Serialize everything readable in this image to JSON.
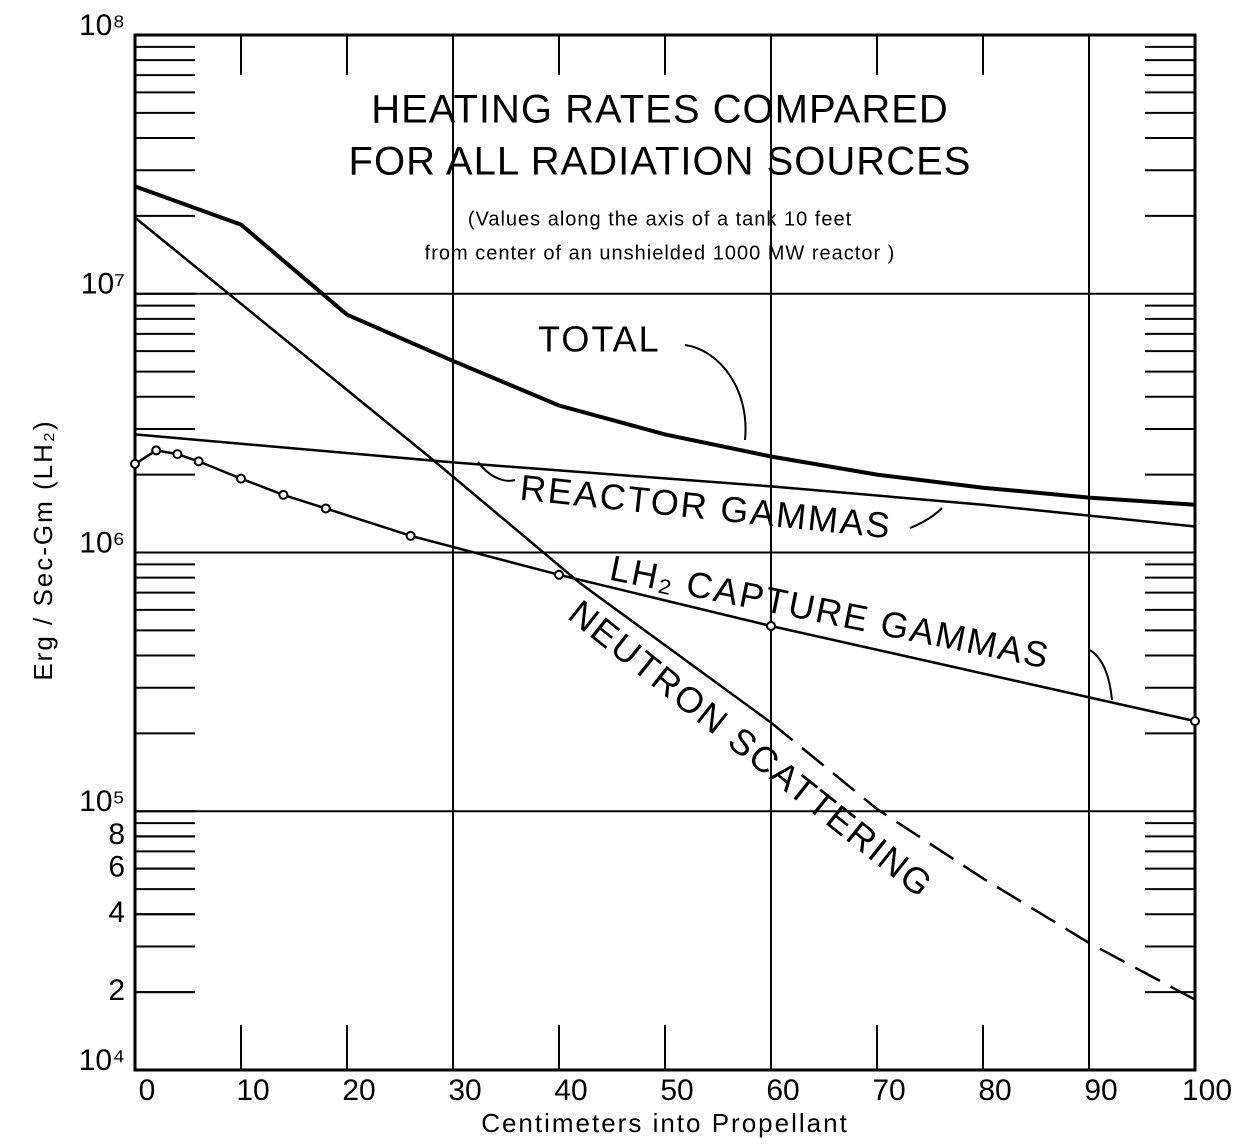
{
  "chart_data": {
    "type": "line",
    "title": [
      "HEATING RATES COMPARED",
      "FOR ALL RADIATION SOURCES"
    ],
    "subtitle": [
      "(Values along the axis of a tank 10 feet",
      "from center of an unshielded 1000 MW reactor )"
    ],
    "xlabel": "Centimeters into Propellant",
    "ylabel": "Erg / Sec-Gm (LH₂)",
    "log_y": true,
    "xlim": [
      0,
      100
    ],
    "ylim": [
      10000,
      100000000
    ],
    "xticks": [
      0,
      10,
      20,
      30,
      40,
      50,
      60,
      70,
      80,
      90,
      100
    ],
    "yticks": [
      {
        "value": 10000,
        "label": "10⁴"
      },
      {
        "value": 20000,
        "label": "2"
      },
      {
        "value": 40000,
        "label": "4"
      },
      {
        "value": 60000,
        "label": "6"
      },
      {
        "value": 80000,
        "label": "8"
      },
      {
        "value": 100000,
        "label": "10⁵"
      },
      {
        "value": 1000000,
        "label": "10⁶"
      },
      {
        "value": 10000000,
        "label": "10⁷"
      },
      {
        "value": 100000000,
        "label": "10⁸"
      }
    ],
    "yminorticks": [
      20000,
      30000,
      40000,
      50000,
      60000,
      70000,
      80000,
      90000,
      200000,
      300000,
      400000,
      500000,
      600000,
      700000,
      800000,
      900000,
      2000000,
      3000000,
      4000000,
      5000000,
      6000000,
      7000000,
      8000000,
      9000000,
      20000000,
      30000000,
      40000000,
      50000000,
      60000000,
      70000000,
      80000000,
      90000000
    ],
    "xgrid": [
      30,
      60,
      90
    ],
    "ygrid": [
      100000,
      1000000,
      10000000
    ],
    "annotations": [
      "TOTAL",
      "REACTOR GAMMAS",
      "LH₂ CAPTURE GAMMAS",
      "NEUTRON SCATTERING"
    ],
    "series": [
      {
        "color": "#000000",
        "width": 4,
        "dash": false,
        "markers": false,
        "x": [
          0,
          10,
          20,
          30,
          40,
          50,
          60,
          70,
          80,
          90,
          100
        ],
        "values": [
          26000000,
          18500000,
          8300000,
          5500000,
          3700000,
          2860000,
          2350000,
          2000000,
          1780000,
          1630000,
          1530000
        ]
      },
      {
        "color": "#000000",
        "width": 2.5,
        "dash": false,
        "markers": false,
        "x": [
          0,
          30,
          60,
          80,
          100
        ],
        "values": [
          2860000,
          2230000,
          1800000,
          1530000,
          1260000
        ]
      },
      {
        "color": "#000000",
        "width": 2.5,
        "dash": false,
        "markers": true,
        "x": [
          0,
          2,
          4,
          6,
          10,
          14,
          18,
          26,
          40,
          60,
          100
        ],
        "values": [
          2200000,
          2480000,
          2400000,
          2250000,
          1930000,
          1670000,
          1480000,
          1160000,
          820000,
          520000,
          223000
        ]
      },
      {
        "color": "#000000",
        "width": 2.5,
        "dash": false,
        "markers": false,
        "x": [
          0,
          28,
          42,
          60
        ],
        "values": [
          19700000,
          2300000,
          760000,
          220000
        ]
      },
      {
        "color": "#000000",
        "width": 2.5,
        "dash": true,
        "markers": false,
        "x": [
          60,
          70,
          80,
          90,
          100
        ],
        "values": [
          220000,
          102000,
          55000,
          31000,
          18700
        ]
      }
    ]
  }
}
